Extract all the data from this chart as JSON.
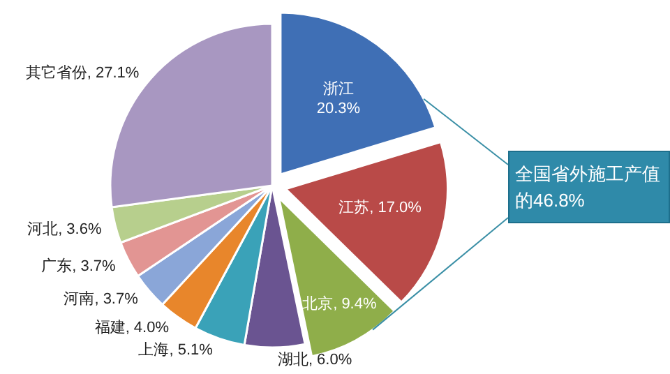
{
  "chart_data": {
    "type": "pie",
    "categories": [
      "浙江",
      "江苏",
      "北京",
      "湖北",
      "上海",
      "福建",
      "河南",
      "广东",
      "河北",
      "其它省份"
    ],
    "values": [
      20.3,
      17.0,
      9.4,
      6.0,
      5.1,
      4.0,
      3.7,
      3.7,
      3.6,
      27.1
    ],
    "value_labels": [
      "20.3%",
      "17.0%",
      "9.4%",
      "6.0%",
      "5.1%",
      "4.0%",
      "3.7%",
      "3.7%",
      "3.6%",
      "27.1%"
    ],
    "colors": [
      "#3f6fb5",
      "#b94a48",
      "#8fae4a",
      "#6a5491",
      "#3aa2b8",
      "#e8862b",
      "#8aa6d8",
      "#e29593",
      "#b7cf8d",
      "#a897c1"
    ],
    "annotations": [
      "全国省外施工产值的46.8%"
    ]
  }
}
